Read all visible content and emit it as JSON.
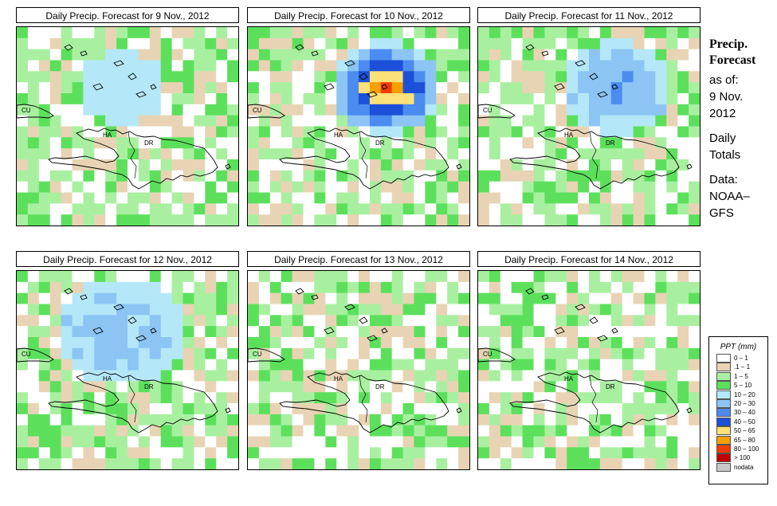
{
  "panels": [
    {
      "title": "Daily Precip. Forecast for  9 Nov., 2012",
      "seed": 11,
      "storm": [
        {
          "c": 9,
          "r": 5,
          "lv": 4,
          "rad": 4
        }
      ]
    },
    {
      "title": "Daily Precip. Forecast for  10 Nov., 2012",
      "seed": 23,
      "storm": [
        {
          "c": 12,
          "r": 5,
          "lv": 10,
          "rad": 5
        }
      ]
    },
    {
      "title": "Daily Precip. Forecast for  11 Nov., 2012",
      "seed": 37,
      "storm": [
        {
          "c": 12,
          "r": 5,
          "lv": 6,
          "rad": 5
        }
      ]
    },
    {
      "title": "Daily Precip. Forecast for  12 Nov., 2012",
      "seed": 41,
      "storm": [
        {
          "c": 9,
          "r": 5,
          "lv": 5,
          "rad": 6
        }
      ]
    },
    {
      "title": "Daily Precip. Forecast for  13 Nov., 2012",
      "seed": 53,
      "storm": []
    },
    {
      "title": "Daily Precip. Forecast for  14 Nov., 2012",
      "seed": 67,
      "storm": []
    }
  ],
  "country_labels": {
    "cu": "CU",
    "ha": "HA",
    "dr": "DR"
  },
  "sidebar": {
    "line1": "Precip.",
    "line2": "Forecast",
    "line3": "as of:",
    "line4": "9 Nov.",
    "line5": "2012",
    "line6": "Daily",
    "line7": "Totals",
    "line8": "Data:",
    "line9": "NOAA–",
    "line10": "GFS"
  },
  "legend": {
    "title": "PPT (mm)",
    "items": [
      {
        "label": "0 – 1",
        "color": "#ffffff"
      },
      {
        "label": ".1 – 1",
        "color": "#e8d4b4"
      },
      {
        "label": "1 – 5",
        "color": "#a8f0a0"
      },
      {
        "label": "5 – 10",
        "color": "#5ce05c"
      },
      {
        "label": "10 – 20",
        "color": "#b4e8f8"
      },
      {
        "label": "20 – 30",
        "color": "#8cc4f4"
      },
      {
        "label": "30 – 40",
        "color": "#4c8cf0"
      },
      {
        "label": "40 – 50",
        "color": "#1c50d8"
      },
      {
        "label": "50 – 65",
        "color": "#fce078"
      },
      {
        "label": "65 – 80",
        "color": "#f8a000"
      },
      {
        "label": "80 – 100",
        "color": "#f03c00"
      },
      {
        "label": "> 100",
        "color": "#c00000"
      },
      {
        "label": "nodata",
        "color": "#c8c8c8"
      }
    ]
  }
}
